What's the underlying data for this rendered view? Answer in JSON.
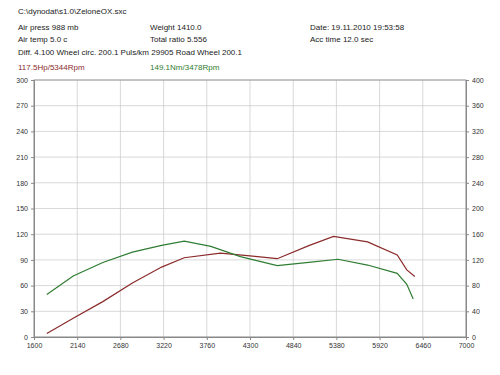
{
  "chart_data": {
    "type": "line",
    "title": "C:\\dynodat\\s1.0\\ZeloneOX.sxc",
    "annotations": [
      {
        "text": "Weight 1410.0"
      },
      {
        "text": "Total ratio 5.556"
      },
      {
        "text": "Date: 19.11.2010 19:53:58"
      },
      {
        "text": "Air press 988 mb"
      },
      {
        "text": "Air temp 5.0 c"
      },
      {
        "text": "Diff. 4.100  Wheel circ. 200.1  Puls/km 29905  Road Wheel 200.1"
      },
      {
        "text": "Acc time 12.0 sec"
      },
      {
        "text": "117.5Hp/5344Rpm",
        "color": "#8b2b2b"
      },
      {
        "text": "149.1Nm/3478Rpm",
        "color": "#2f7d32"
      }
    ],
    "series": [
      {
        "color": "#8b2b2b",
        "x": [
          1760,
          2090,
          2460,
          2830,
          3195,
          3478,
          3930,
          4300,
          4640,
          5035,
          5344,
          5770,
          6140,
          6260,
          6360
        ],
        "values": [
          4,
          21.8,
          41.3,
          63.1,
          81.6,
          92.5,
          97.9,
          94.7,
          91.4,
          106.6,
          117.5,
          111.0,
          95.7,
          78.3,
          70.7
        ]
      },
      {
        "color": "#2f7d32",
        "axis": "y2",
        "x": [
          1760,
          2090,
          2460,
          2830,
          3195,
          3478,
          3810,
          4180,
          4640,
          5035,
          5400,
          5770,
          6140,
          6260,
          6340
        ],
        "values": [
          66,
          95,
          116,
          132,
          142.5,
          149.1,
          141,
          125,
          111,
          116,
          121,
          112,
          99,
          82,
          59
        ]
      }
    ],
    "xlim": [
      1600,
      7000
    ],
    "xticks": [
      1600,
      2140,
      2680,
      3220,
      3760,
      4300,
      4840,
      5380,
      5920,
      6460,
      7000
    ],
    "ylim": [
      0,
      300
    ],
    "yticks": [
      0,
      30,
      60,
      90,
      120,
      150,
      180,
      210,
      240,
      270,
      300
    ],
    "y2lim": [
      0,
      400
    ],
    "y2ticks": [
      0,
      40,
      80,
      120,
      160,
      200,
      240,
      280,
      320,
      360,
      400
    ],
    "grid": true
  }
}
